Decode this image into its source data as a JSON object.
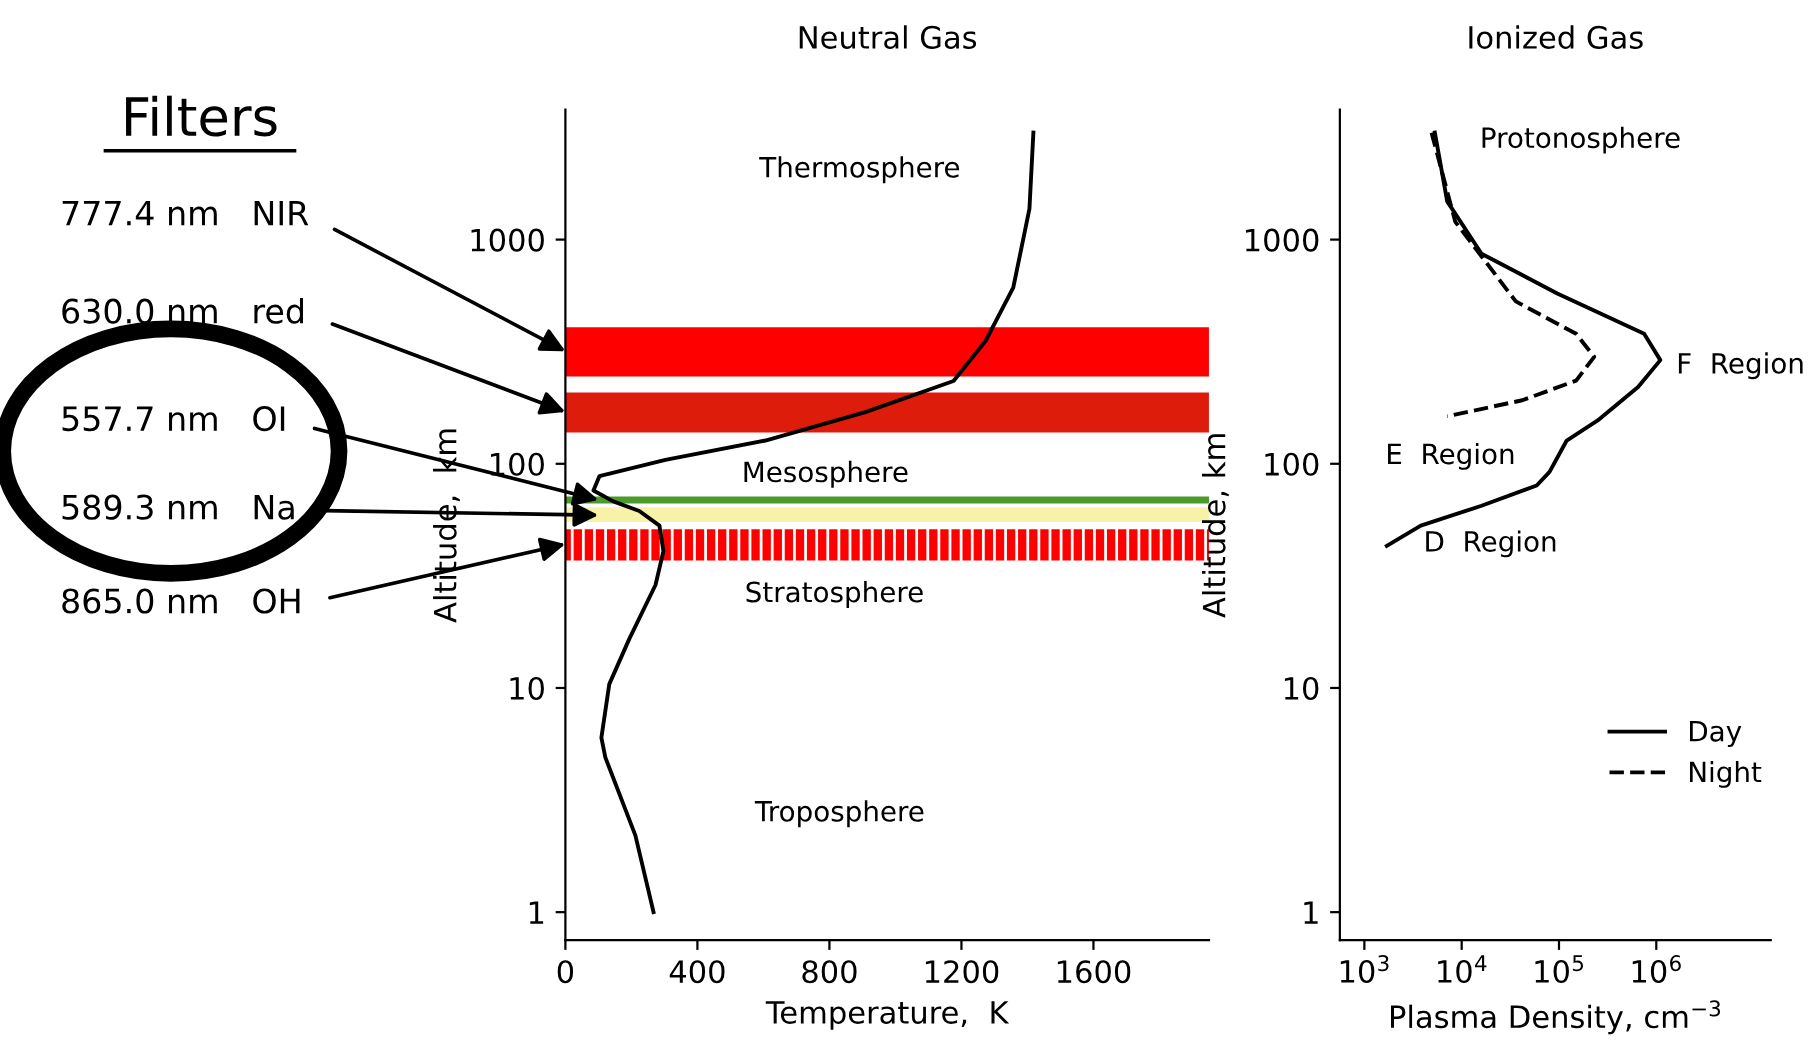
{
  "chart_data": [
    {
      "type": "line",
      "title": "Neutral Gas",
      "xlabel": "Temperature,  K",
      "ylabel": "Altitude,  km",
      "log": "y",
      "xlim": [
        0,
        1950
      ],
      "ylim": [
        0.75,
        3800
      ],
      "xticks": [
        0,
        400,
        800,
        1200,
        1600
      ],
      "yticks": [
        1,
        10,
        100,
        1000
      ],
      "grid": false,
      "legend": false,
      "series": [
        {
          "color": "#000000",
          "x": [
            267,
            212,
            121,
            109,
            133,
            194,
            273,
            297,
            285,
            224,
            145,
            85,
            103,
            303,
            606,
            909,
            1176,
            1273,
            1357,
            1406,
            1418
          ],
          "values": [
            1,
            2.2,
            4.9,
            6.0,
            10.4,
            16.6,
            28.8,
            40.8,
            53,
            61.6,
            68,
            76,
            88,
            104,
            127,
            170,
            234,
            353,
            610,
            1370,
            3000
          ]
        }
      ],
      "bands": [
        {
          "axis": "y",
          "from": 245,
          "to": 406,
          "color": "#ff0000"
        },
        {
          "axis": "y",
          "from": 138,
          "to": 208,
          "color": "#de1c0c"
        },
        {
          "axis": "y",
          "from": 55,
          "to": 64,
          "color": "#f7f2a8"
        },
        {
          "axis": "y",
          "from": 37,
          "to": 51,
          "color": "#ff0000"
        }
      ],
      "ref_lines": [
        {
          "axis": "y",
          "value": 69,
          "color": "#4c9a2a"
        }
      ],
      "annotations": [
        "Filters",
        "777.4 nm   NIR",
        "630.0 nm   red",
        {
          "text": "557.7 nm   OI",
          "x": 100,
          "y": 69
        },
        {
          "text": "589.3 nm   Na",
          "x": 100,
          "y": 59
        },
        "865.0 nm   OH",
        "Thermosphere",
        "Mesosphere",
        "Stratosphere",
        "Troposphere"
      ]
    },
    {
      "type": "line",
      "title": "Ionized Gas",
      "xlabel": "Plasma Density, cm$^{−3}$",
      "ylabel": "Altitude, km",
      "log": "xy",
      "xlim": [
        560,
        15000000
      ],
      "ylim": [
        0.75,
        3800
      ],
      "xticks": [
        {
          "value": 1000,
          "label": "10$^{3}$"
        },
        {
          "value": 10000,
          "label": "10$^{4}$"
        },
        {
          "value": 100000,
          "label": "10$^{5}$"
        },
        {
          "value": 1000000,
          "label": "10$^{6}$"
        }
      ],
      "yticks": [
        1,
        10,
        100,
        1000
      ],
      "grid": false,
      "legend": "bottom right",
      "series": [
        {
          "name": "Day",
          "color": "#000000",
          "line_style": "solid",
          "x": [
            5300,
            7100,
            16000,
            96000,
            750000,
            1100000,
            650000,
            250000,
            120000,
            80000,
            59000,
            16000,
            3800,
            1700
          ],
          "values": [
            3000,
            1480,
            865,
            575,
            380,
            290,
            220,
            156,
            127,
            92,
            80,
            65,
            53,
            43
          ]
        },
        {
          "name": "Night",
          "color": "#000000",
          "line_style": "dashed",
          "x": [
            4900,
            8600,
            36000,
            150000,
            230000,
            150000,
            42000,
            7100
          ],
          "values": [
            3000,
            1200,
            530,
            380,
            300,
            235,
            192,
            163
          ]
        }
      ],
      "annotations": [
        "Protonosphere",
        "F  Region",
        "E  Region",
        "D  Region"
      ]
    }
  ]
}
